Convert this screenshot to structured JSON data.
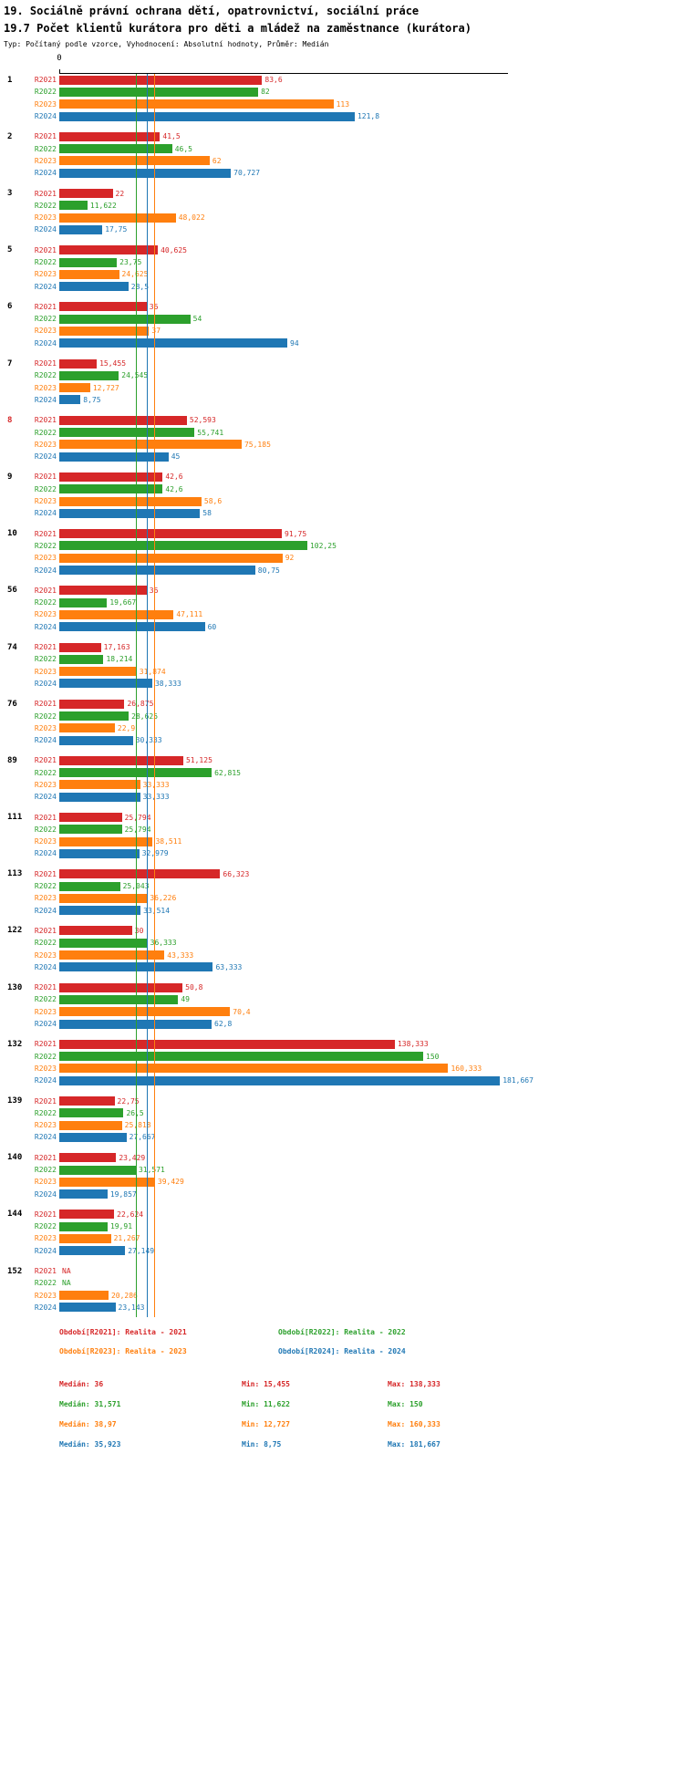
{
  "header": {
    "title_line1": "19. Sociálně právní ochrana dětí, opatrovnictví, sociální práce",
    "title_line2": "19.7 Počet klientů kurátora pro děti a mládež na zaměstnance (kurátora)",
    "subtitle": "Typ: Počítaný podle vzorce, Vyhodnocení: Absolutní hodnoty, Průměr: Medián"
  },
  "chart_data": {
    "type": "bar",
    "orientation": "horizontal",
    "xlim": [
      0,
      185
    ],
    "axis_zero_label": "0",
    "grid": false,
    "series": [
      {
        "name": "R2021",
        "color": "#d62728",
        "median": 36
      },
      {
        "name": "R2022",
        "color": "#2ca02c",
        "median": 31.571
      },
      {
        "name": "R2023",
        "color": "#ff7f0e",
        "median": 38.97
      },
      {
        "name": "R2024",
        "color": "#1f77b4",
        "median": 35.923
      }
    ],
    "groups": [
      {
        "id": "1",
        "highlighted": false,
        "values": [
          83.6,
          82,
          113,
          121.8
        ],
        "labels": [
          "83,6",
          "82",
          "113",
          "121,8"
        ]
      },
      {
        "id": "2",
        "highlighted": false,
        "values": [
          41.5,
          46.5,
          62,
          70.727
        ],
        "labels": [
          "41,5",
          "46,5",
          "62",
          "70,727"
        ]
      },
      {
        "id": "3",
        "highlighted": false,
        "values": [
          22,
          11.622,
          48.022,
          17.75
        ],
        "labels": [
          "22",
          "11,622",
          "48,022",
          "17,75"
        ]
      },
      {
        "id": "5",
        "highlighted": false,
        "values": [
          40.625,
          23.75,
          24.625,
          28.5
        ],
        "labels": [
          "40,625",
          "23,75",
          "24,625",
          "28,5"
        ]
      },
      {
        "id": "6",
        "highlighted": false,
        "values": [
          36,
          54,
          37,
          94
        ],
        "labels": [
          "36",
          "54",
          "37",
          "94"
        ]
      },
      {
        "id": "7",
        "highlighted": false,
        "values": [
          15.455,
          24.545,
          12.727,
          8.75
        ],
        "labels": [
          "15,455",
          "24,545",
          "12,727",
          "8,75"
        ]
      },
      {
        "id": "8",
        "highlighted": true,
        "values": [
          52.593,
          55.741,
          75.185,
          45
        ],
        "labels": [
          "52,593",
          "55,741",
          "75,185",
          "45"
        ]
      },
      {
        "id": "9",
        "highlighted": false,
        "values": [
          42.6,
          42.6,
          58.6,
          58
        ],
        "labels": [
          "42,6",
          "42,6",
          "58,6",
          "58"
        ]
      },
      {
        "id": "10",
        "highlighted": false,
        "values": [
          91.75,
          102.25,
          92,
          80.75
        ],
        "labels": [
          "91,75",
          "102,25",
          "92",
          "80,75"
        ]
      },
      {
        "id": "56",
        "highlighted": false,
        "values": [
          36,
          19.667,
          47.111,
          60
        ],
        "labels": [
          "36",
          "19,667",
          "47,111",
          "60"
        ]
      },
      {
        "id": "74",
        "highlighted": false,
        "values": [
          17.163,
          18.214,
          31.874,
          38.333
        ],
        "labels": [
          "17,163",
          "18,214",
          "31,874",
          "38,333"
        ]
      },
      {
        "id": "76",
        "highlighted": false,
        "values": [
          26.875,
          28.625,
          22.9,
          30.333
        ],
        "labels": [
          "26,875",
          "28,625",
          "22,9",
          "30,333"
        ]
      },
      {
        "id": "89",
        "highlighted": false,
        "values": [
          51.125,
          62.815,
          33.333,
          33.333
        ],
        "labels": [
          "51,125",
          "62,815",
          "33,333",
          "33,333"
        ]
      },
      {
        "id": "111",
        "highlighted": false,
        "values": [
          25.794,
          25.794,
          38.511,
          32.979
        ],
        "labels": [
          "25,794",
          "25,794",
          "38,511",
          "32,979"
        ]
      },
      {
        "id": "113",
        "highlighted": false,
        "values": [
          66.323,
          25.043,
          36.226,
          33.514
        ],
        "labels": [
          "66,323",
          "25,043",
          "36,226",
          "33,514"
        ]
      },
      {
        "id": "122",
        "highlighted": false,
        "values": [
          30,
          36.333,
          43.333,
          63.333
        ],
        "labels": [
          "30",
          "36,333",
          "43,333",
          "63,333"
        ]
      },
      {
        "id": "130",
        "highlighted": false,
        "values": [
          50.8,
          49,
          70.4,
          62.8
        ],
        "labels": [
          "50,8",
          "49",
          "70,4",
          "62,8"
        ]
      },
      {
        "id": "132",
        "highlighted": false,
        "values": [
          138.333,
          150,
          160.333,
          181.667
        ],
        "labels": [
          "138,333",
          "150",
          "160,333",
          "181,667"
        ]
      },
      {
        "id": "139",
        "highlighted": false,
        "values": [
          22.75,
          26.5,
          25.818,
          27.667
        ],
        "labels": [
          "22,75",
          "26,5",
          "25,818",
          "27,667"
        ]
      },
      {
        "id": "140",
        "highlighted": false,
        "values": [
          23.429,
          31.571,
          39.429,
          19.857
        ],
        "labels": [
          "23,429",
          "31,571",
          "39,429",
          "19,857"
        ]
      },
      {
        "id": "144",
        "highlighted": false,
        "values": [
          22.624,
          19.91,
          21.267,
          27.149
        ],
        "labels": [
          "22,624",
          "19,91",
          "21,267",
          "27,149"
        ]
      },
      {
        "id": "152",
        "highlighted": false,
        "values": [
          null,
          null,
          20.286,
          23.143
        ],
        "labels": [
          "NA",
          "NA",
          "20,286",
          "23,143"
        ]
      }
    ]
  },
  "legend": {
    "items": [
      {
        "label": "Období[R2021]: Realita - 2021",
        "color": "#d62728"
      },
      {
        "label": "Období[R2022]: Realita - 2022",
        "color": "#2ca02c"
      },
      {
        "label": "Období[R2023]: Realita - 2023",
        "color": "#ff7f0e"
      },
      {
        "label": "Období[R2024]: Realita - 2024",
        "color": "#1f77b4"
      }
    ]
  },
  "stats": {
    "rows": [
      {
        "color": "#d62728",
        "median": "Medián: 36",
        "min": "Min: 15,455",
        "max": "Max: 138,333"
      },
      {
        "color": "#2ca02c",
        "median": "Medián: 31,571",
        "min": "Min: 11,622",
        "max": "Max: 150"
      },
      {
        "color": "#ff7f0e",
        "median": "Medián: 38,97",
        "min": "Min: 12,727",
        "max": "Max: 160,333"
      },
      {
        "color": "#1f77b4",
        "median": "Medián: 35,923",
        "min": "Min: 8,75",
        "max": "Max: 181,667"
      }
    ]
  }
}
